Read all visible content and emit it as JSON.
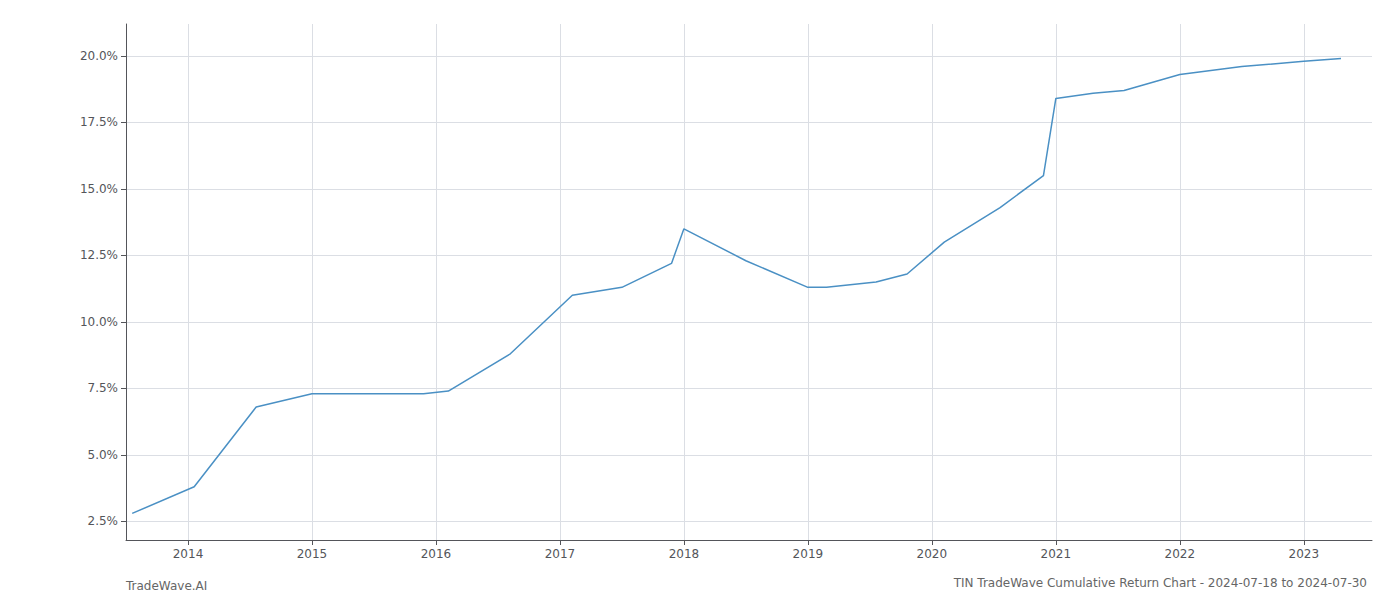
{
  "chart_data": {
    "type": "line",
    "title": "TIN TradeWave Cumulative Return Chart - 2024-07-18 to 2024-07-30",
    "annotations": [
      "TradeWave.AI"
    ],
    "x": [
      2013.55,
      2014.05,
      2014.55,
      2015.0,
      2015.5,
      2015.9,
      2016.1,
      2016.6,
      2017.1,
      2017.5,
      2017.9,
      2018.0,
      2018.5,
      2019.0,
      2019.15,
      2019.55,
      2019.8,
      2020.1,
      2020.55,
      2020.9,
      2021.0,
      2021.3,
      2021.55,
      2022.0,
      2022.5,
      2023.0,
      2023.3
    ],
    "values": [
      0.028,
      0.038,
      0.068,
      0.073,
      0.073,
      0.073,
      0.074,
      0.088,
      0.11,
      0.113,
      0.122,
      0.135,
      0.123,
      0.113,
      0.113,
      0.115,
      0.118,
      0.13,
      0.143,
      0.155,
      0.184,
      0.186,
      0.187,
      0.193,
      0.196,
      0.198,
      0.199
    ],
    "color": "#4a90c4",
    "xlim": [
      2013.5,
      2023.55
    ],
    "xticks": [
      2014,
      2015,
      2016,
      2017,
      2018,
      2019,
      2020,
      2021,
      2022,
      2023
    ],
    "ylim": [
      0.018,
      0.212
    ],
    "yticks": [
      {
        "value": 0.025,
        "label": "2.5%"
      },
      {
        "value": 0.05,
        "label": "5.0%"
      },
      {
        "value": 0.075,
        "label": "7.5%"
      },
      {
        "value": 0.1,
        "label": "10.0%"
      },
      {
        "value": 0.125,
        "label": "12.5%"
      },
      {
        "value": 0.15,
        "label": "15.0%"
      },
      {
        "value": 0.175,
        "label": "17.5%"
      },
      {
        "value": 0.2,
        "label": "20.0%"
      }
    ],
    "grid": true
  }
}
